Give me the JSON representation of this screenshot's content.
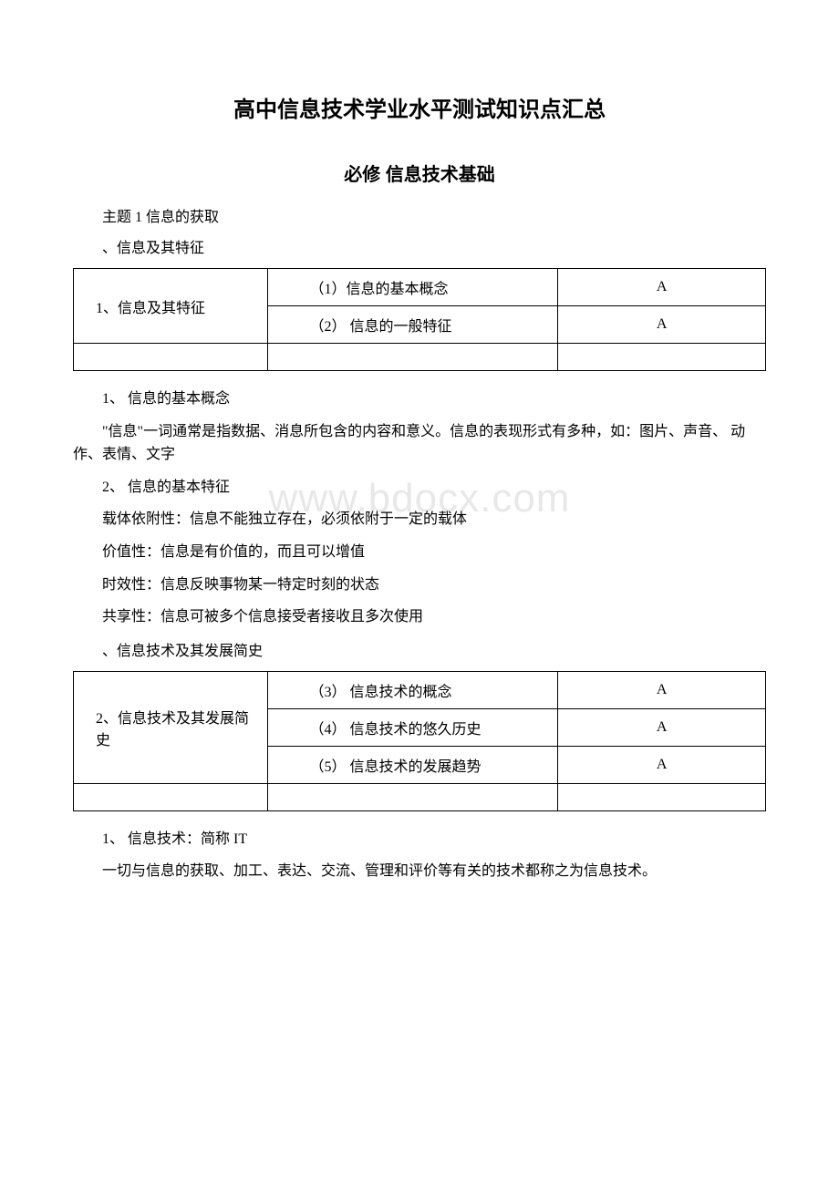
{
  "title_main": "高中信息技术学业水平测试知识点汇总",
  "title_sub": "必修 信息技术基础",
  "topic1_header": "主题 1 信息的获取",
  "section1_header": "、信息及其特征",
  "table1": {
    "r1c1": "1、信息及其特征",
    "r1c2": "（1）信息的基本概念",
    "r1c3": "A",
    "r2c2": "（2） 信息的一般特征",
    "r2c3": "A"
  },
  "body1": {
    "p1": "1、 信息的基本概念",
    "p2": "\"信息\"一词通常是指数据、消息所包含的内容和意义。信息的表现形式有多种，如：图片、声音、 动作、表情、文字",
    "p3": "2、 信息的基本特征",
    "p4": "载体依附性：信息不能独立存在，必须依附于一定的载体",
    "p5": "价值性：信息是有价值的，而且可以增值",
    "p6": "时效性：信息反映事物某一特定时刻的状态",
    "p7": "共享性：信息可被多个信息接受者接收且多次使用"
  },
  "section2_header": "、信息技术及其发展简史",
  "table2": {
    "r1c1": "2、信息技术及其发展简史",
    "r1c2": "（3） 信息技术的概念",
    "r1c3": "A",
    "r2c2": "（4） 信息技术的悠久历史",
    "r2c3": "A",
    "r3c2": "（5） 信息技术的发展趋势",
    "r3c3": "A"
  },
  "body2": {
    "p1": "1、 信息技术：简称 IT",
    "p2": "一切与信息的获取、加工、表达、交流、管理和评价等有关的技术都称之为信息技术。"
  },
  "watermark": "www.bdocx.com"
}
